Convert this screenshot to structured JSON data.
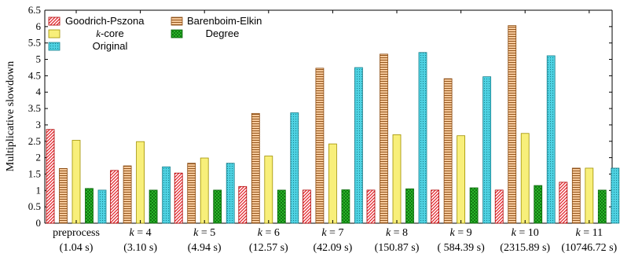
{
  "chart_data": {
    "type": "bar",
    "ylabel": "Multiplicative slowdown",
    "ylim": [
      0,
      6.5
    ],
    "yticks": [
      "0",
      "0.5",
      "1",
      "1.5",
      "2",
      "2.5",
      "3",
      "3.5",
      "4",
      "4.5",
      "5",
      "5.5",
      "6",
      "6.5"
    ],
    "grid": false,
    "legend_position": "top-left",
    "categories": [
      {
        "label": "preprocess",
        "time": "(1.04 s)"
      },
      {
        "label": "k = 4",
        "time": "(3.10 s)"
      },
      {
        "label": "k = 5",
        "time": "(4.94 s)"
      },
      {
        "label": "k = 6",
        "time": "(12.57 s)"
      },
      {
        "label": "k = 7",
        "time": "(42.09 s)"
      },
      {
        "label": "k = 8",
        "time": "(150.87 s)"
      },
      {
        "label": "k = 9",
        "time": "( 584.39 s)"
      },
      {
        "label": "k = 10",
        "time": "(2315.89 s)"
      },
      {
        "label": "k = 11",
        "time": "(10746.72 s)"
      }
    ],
    "series": [
      {
        "name": "Goodrich-Pszona",
        "color": "#e3242b",
        "pattern": "diagonal-hatch",
        "values": [
          2.86,
          1.61,
          1.53,
          1.12,
          1.01,
          1.01,
          1.01,
          1.01,
          1.25
        ]
      },
      {
        "name": "Barenboim-Elkin",
        "color": "#f5c89a",
        "pattern": "horizontal-lines",
        "values": [
          1.67,
          1.75,
          1.83,
          3.35,
          4.73,
          5.16,
          4.41,
          6.03,
          1.68
        ]
      },
      {
        "name": "k-core",
        "color": "#f8ef7a",
        "pattern": "solid",
        "values": [
          2.53,
          2.49,
          1.99,
          2.05,
          2.42,
          2.7,
          2.67,
          2.74,
          1.68
        ]
      },
      {
        "name": "Degree",
        "color": "#2ec42e",
        "pattern": "cross-hatch",
        "values": [
          1.06,
          1.01,
          1.01,
          1.01,
          1.02,
          1.05,
          1.08,
          1.15,
          1.01
        ]
      },
      {
        "name": "Original",
        "color": "#4fd3e3",
        "pattern": "dotted",
        "values": [
          1.01,
          1.72,
          1.83,
          3.37,
          4.75,
          5.21,
          4.47,
          5.11,
          1.68
        ]
      }
    ]
  }
}
